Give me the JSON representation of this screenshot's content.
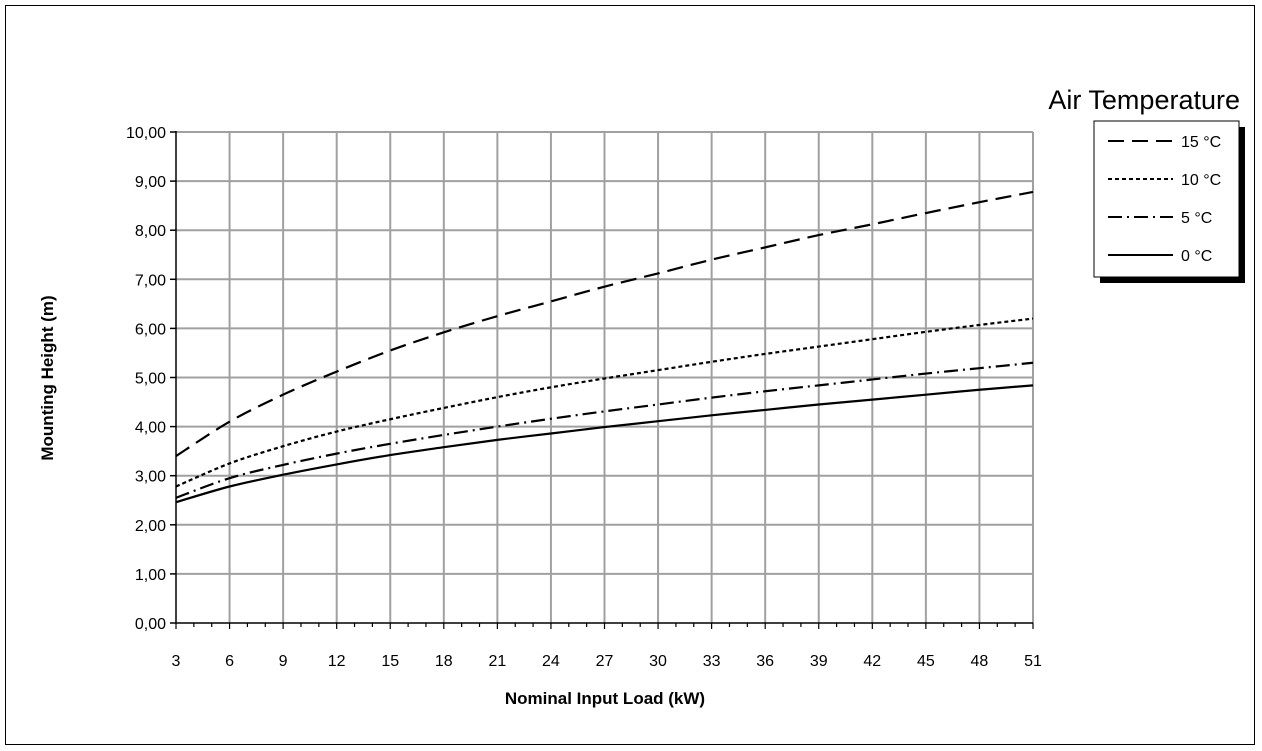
{
  "chart_data": {
    "type": "line",
    "title": "",
    "xlabel": "Nominal Input Load (kW)",
    "ylabel": "Mounting Height (m)",
    "x_ticks": [
      "3",
      "6",
      "9",
      "12",
      "15",
      "18",
      "21",
      "24",
      "27",
      "30",
      "33",
      "36",
      "39",
      "42",
      "45",
      "48",
      "51"
    ],
    "y_ticks": [
      "0,00",
      "1,00",
      "2,00",
      "3,00",
      "4,00",
      "5,00",
      "6,00",
      "7,00",
      "8,00",
      "9,00",
      "10,00"
    ],
    "xlim": [
      3,
      51
    ],
    "ylim": [
      0,
      10
    ],
    "grid": true,
    "legend_title": "Air Temperature",
    "legend_position": "right",
    "x": [
      3,
      6,
      9,
      12,
      15,
      18,
      21,
      24,
      27,
      30,
      33,
      36,
      39,
      42,
      45,
      48,
      51
    ],
    "series": [
      {
        "name": "15 °C",
        "style": "long-dash",
        "color": "#000000",
        "values": [
          3.4,
          4.1,
          4.65,
          5.12,
          5.55,
          5.92,
          6.25,
          6.55,
          6.85,
          7.12,
          7.4,
          7.65,
          7.9,
          8.12,
          8.35,
          8.57,
          8.78
        ]
      },
      {
        "name": "10 °C",
        "style": "short-dash",
        "color": "#000000",
        "values": [
          2.78,
          3.25,
          3.6,
          3.9,
          4.15,
          4.38,
          4.6,
          4.8,
          4.98,
          5.15,
          5.32,
          5.48,
          5.63,
          5.78,
          5.93,
          6.07,
          6.2
        ]
      },
      {
        "name": "5 °C",
        "style": "dash-dot",
        "color": "#000000",
        "values": [
          2.55,
          2.95,
          3.22,
          3.45,
          3.65,
          3.83,
          4.0,
          4.16,
          4.31,
          4.45,
          4.59,
          4.72,
          4.84,
          4.96,
          5.08,
          5.19,
          5.3
        ]
      },
      {
        "name": "0 °C",
        "style": "solid",
        "color": "#000000",
        "values": [
          2.46,
          2.78,
          3.02,
          3.23,
          3.42,
          3.58,
          3.73,
          3.86,
          3.99,
          4.11,
          4.23,
          4.34,
          4.45,
          4.55,
          4.65,
          4.75,
          4.84
        ]
      }
    ]
  }
}
